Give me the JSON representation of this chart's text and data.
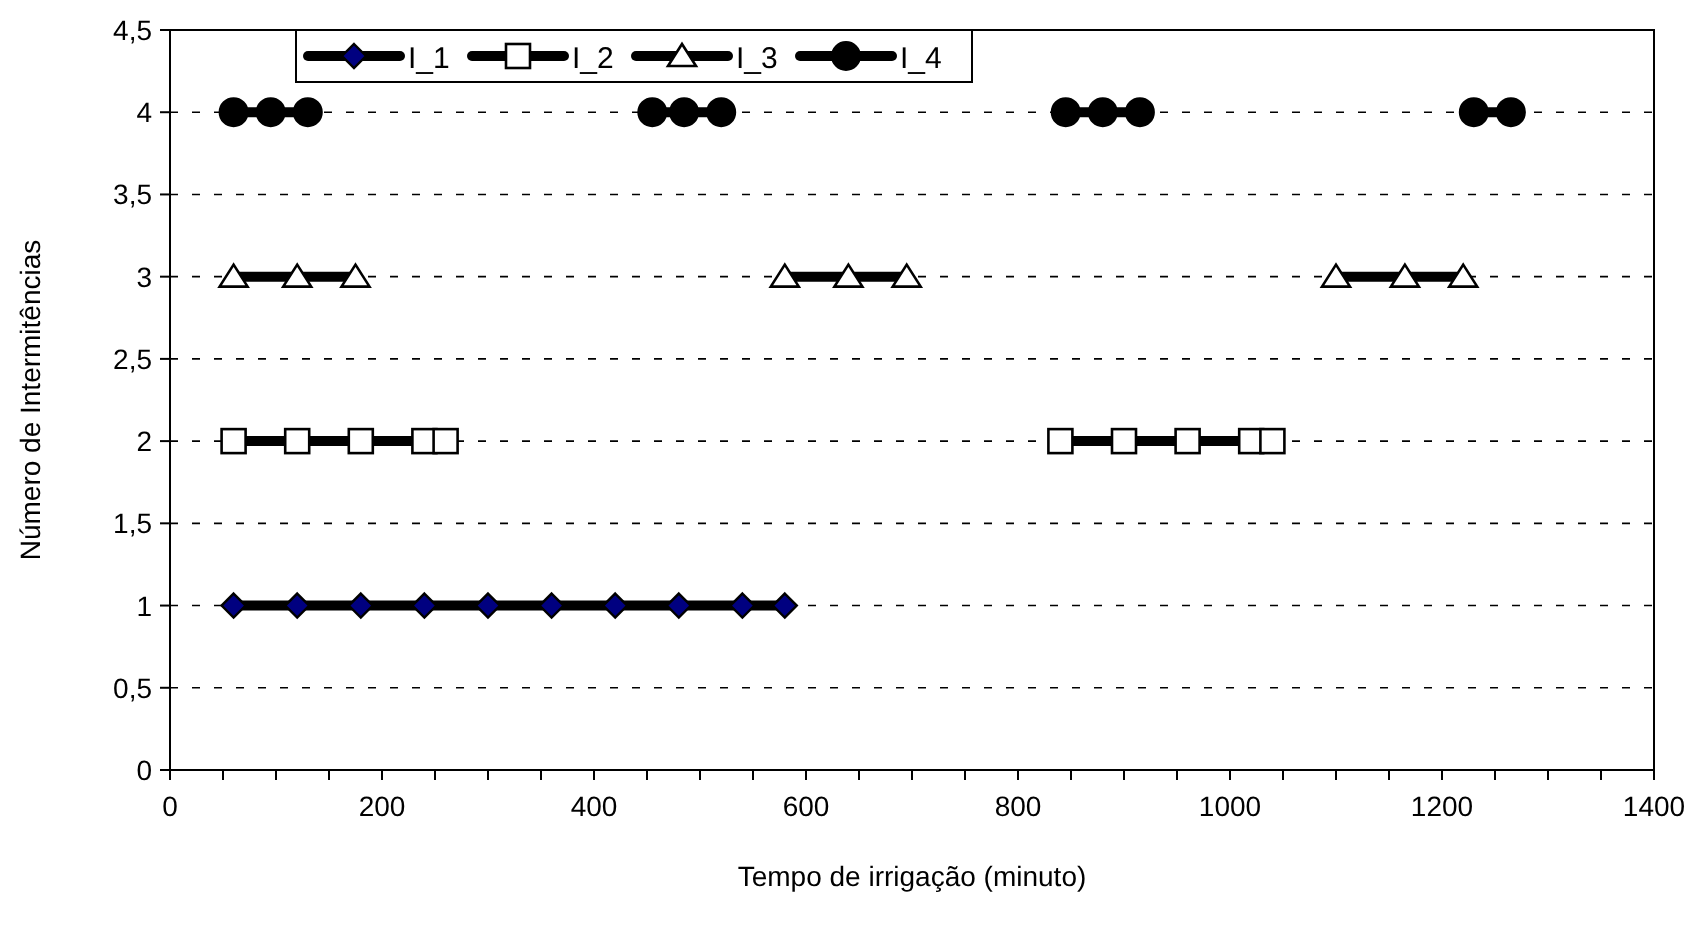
{
  "chart_data": {
    "type": "line",
    "xlabel": "Tempo de irrigação (minuto)",
    "ylabel": "Número de Intermitências",
    "xlim": [
      0,
      1400
    ],
    "xticks": [
      0,
      200,
      400,
      600,
      800,
      1000,
      1200,
      1400
    ],
    "ylim": [
      0,
      4.5
    ],
    "yticks": [
      0,
      {
        "value": 0.5,
        "label": "0,5"
      },
      1,
      {
        "value": 1.5,
        "label": "1,5"
      },
      2,
      {
        "value": 2.5,
        "label": "2,5"
      },
      3,
      {
        "value": 3.5,
        "label": "3,5"
      },
      4,
      {
        "value": 4.5,
        "label": "4,5"
      }
    ],
    "grid": "y",
    "legend": "top",
    "line_style": "solid",
    "series": [
      {
        "name": "I_1",
        "color": "#000000",
        "marker": "diamond",
        "x": [
          60,
          120,
          180,
          240,
          300,
          360,
          420,
          480,
          540,
          580
        ],
        "values": [
          1,
          1,
          1,
          1,
          1,
          1,
          1,
          1,
          1,
          1
        ]
      },
      {
        "name": "I_2",
        "color": "#000000",
        "marker": "square",
        "x": [
          60,
          120,
          180,
          240,
          260,
          550,
          840,
          900,
          960,
          1020,
          1040
        ],
        "values": [
          2,
          2,
          2,
          2,
          2,
          null,
          2,
          2,
          2,
          2,
          2
        ]
      },
      {
        "name": "I_3",
        "color": "#000000",
        "marker": "triangle",
        "x": [
          60,
          120,
          175,
          380,
          580,
          640,
          695,
          900,
          1100,
          1165,
          1220
        ],
        "values": [
          3,
          3,
          3,
          null,
          3,
          3,
          3,
          null,
          3,
          3,
          3
        ]
      },
      {
        "name": "I_4",
        "color": "#000000",
        "marker": "circle",
        "x": [
          60,
          95,
          130,
          300,
          455,
          485,
          520,
          700,
          845,
          880,
          915,
          1100,
          1230,
          1265
        ],
        "values": [
          4,
          4,
          4,
          null,
          4,
          4,
          4,
          null,
          4,
          4,
          4,
          null,
          4,
          4
        ]
      }
    ]
  }
}
